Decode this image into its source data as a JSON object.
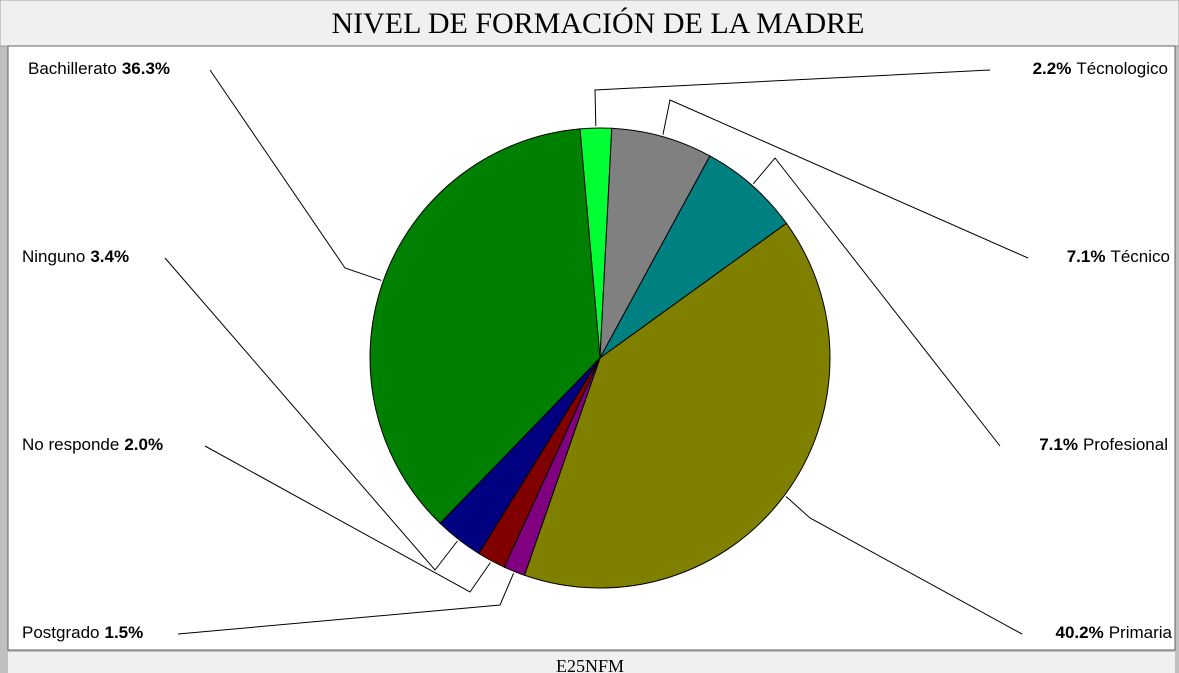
{
  "chart_data": {
    "type": "pie",
    "title": "NIVEL DE FORMACIÓN DE LA MADRE",
    "xlabel": "E25NFM",
    "categories": [
      "Técnologico",
      "Técnico",
      "Profesional",
      "Primaria",
      "Postgrado",
      "No responde",
      "Ninguno",
      "Bachillerato"
    ],
    "values": [
      2.2,
      7.1,
      7.1,
      40.2,
      1.5,
      2.0,
      3.4,
      36.3
    ],
    "value_labels": [
      "2.2%",
      "7.1%",
      "7.1%",
      "40.2%",
      "1.5%",
      "2.0%",
      "3.4%",
      "36.3%"
    ],
    "colors": [
      "#00ff33",
      "#808080",
      "#008080",
      "#808000",
      "#800080",
      "#800000",
      "#000080",
      "#008000"
    ]
  }
}
